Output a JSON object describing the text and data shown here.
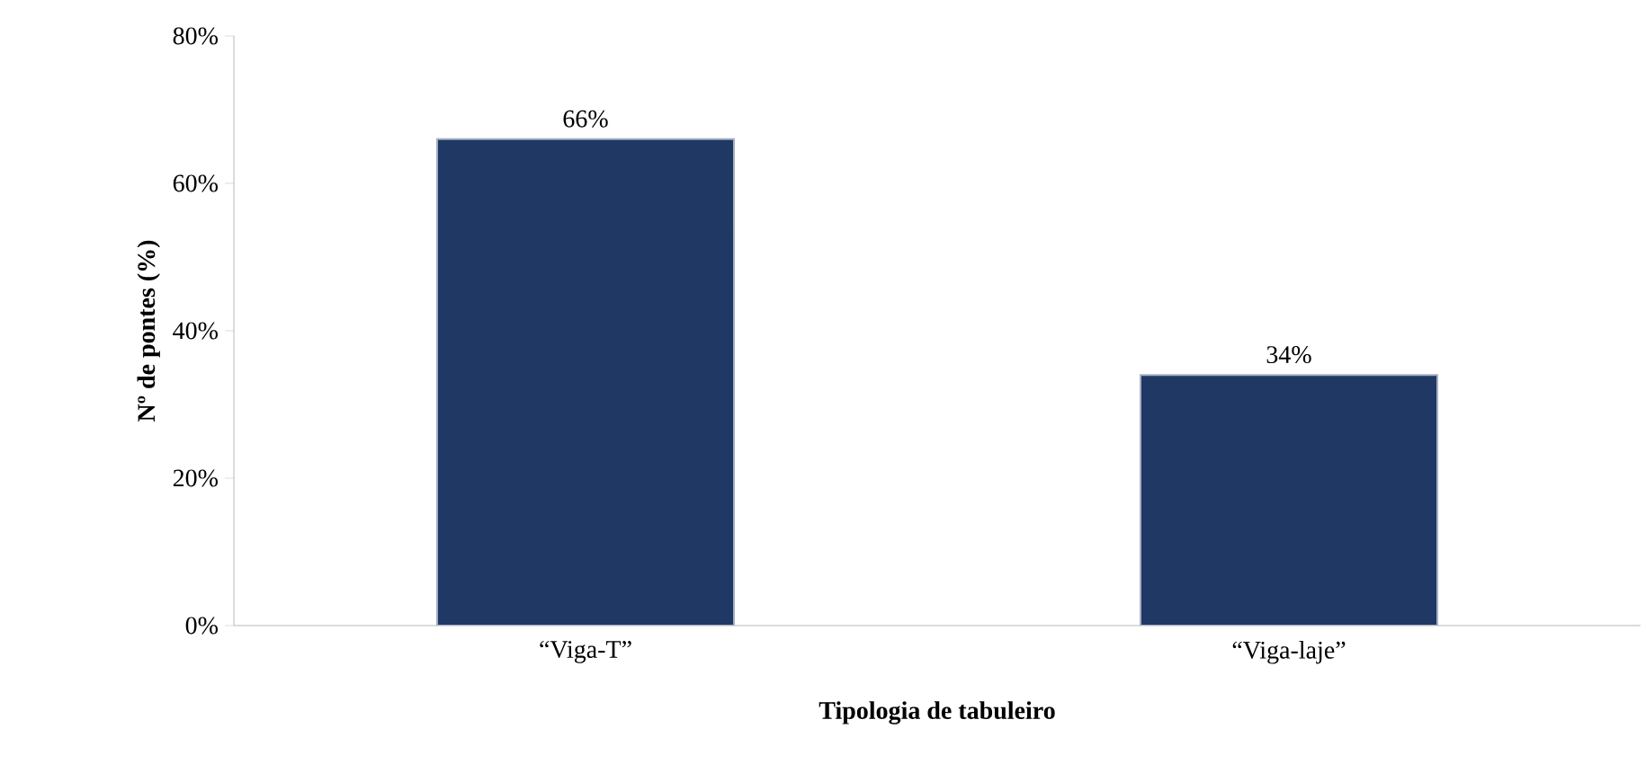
{
  "chart_data": {
    "type": "bar",
    "xlabel": "Tipologia de tabuleiro",
    "ylabel": "Nº de pontes (%)",
    "categories": [
      "“Viga-T”",
      "“Viga-laje”"
    ],
    "values": [
      66,
      34
    ],
    "value_labels": [
      "66%",
      "34%"
    ],
    "color": "#1f3864",
    "ylim": [
      0,
      80
    ],
    "yticks": [
      {
        "value": 0,
        "label": "0%"
      },
      {
        "value": 20,
        "label": "20%"
      },
      {
        "value": 40,
        "label": "40%"
      },
      {
        "value": 60,
        "label": "60%"
      },
      {
        "value": 80,
        "label": "80%"
      }
    ],
    "grid": false
  }
}
